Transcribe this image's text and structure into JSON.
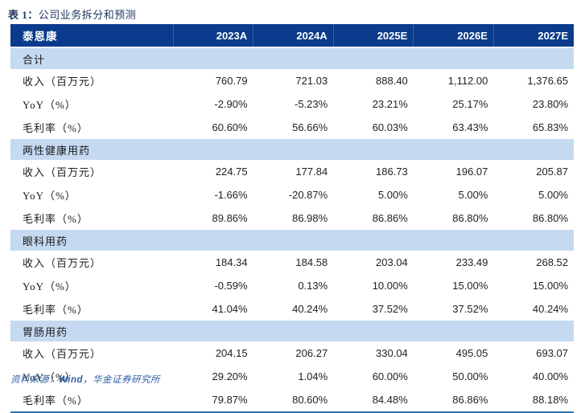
{
  "title": {
    "prefix": "表 1：",
    "text": "公司业务拆分和预测"
  },
  "colors": {
    "header_bg": "#0B3B8C",
    "header_divider": "#3B5EA8",
    "section_bg": "#C5D9F1",
    "title_color": "#1F3864",
    "table_bottom_border": "#2E74B5",
    "source_color": "#2E5FA8"
  },
  "table": {
    "company": "泰恩康",
    "years": [
      "2023A",
      "2024A",
      "2025E",
      "2026E",
      "2027E"
    ],
    "sections": [
      {
        "name": "合计",
        "rows": [
          {
            "label": "收入（百万元）",
            "values": [
              "760.79",
              "721.03",
              "888.40",
              "1,112.00",
              "1,376.65"
            ]
          },
          {
            "label": "YoY（%）",
            "values": [
              "-2.90%",
              "-5.23%",
              "23.21%",
              "25.17%",
              "23.80%"
            ]
          },
          {
            "label": "毛利率（%）",
            "values": [
              "60.60%",
              "56.66%",
              "60.03%",
              "63.43%",
              "65.83%"
            ]
          }
        ]
      },
      {
        "name": "两性健康用药",
        "rows": [
          {
            "label": "收入（百万元）",
            "values": [
              "224.75",
              "177.84",
              "186.73",
              "196.07",
              "205.87"
            ]
          },
          {
            "label": "YoY（%）",
            "values": [
              "-1.66%",
              "-20.87%",
              "5.00%",
              "5.00%",
              "5.00%"
            ]
          },
          {
            "label": "毛利率（%）",
            "values": [
              "89.86%",
              "86.98%",
              "86.86%",
              "86.80%",
              "86.80%"
            ]
          }
        ]
      },
      {
        "name": "眼科用药",
        "rows": [
          {
            "label": "收入（百万元）",
            "values": [
              "184.34",
              "184.58",
              "203.04",
              "233.49",
              "268.52"
            ]
          },
          {
            "label": "YoY（%）",
            "values": [
              "-0.59%",
              "0.13%",
              "10.00%",
              "15.00%",
              "15.00%"
            ]
          },
          {
            "label": "毛利率（%）",
            "values": [
              "41.04%",
              "40.24%",
              "37.52%",
              "37.52%",
              "40.24%"
            ]
          }
        ]
      },
      {
        "name": "胃肠用药",
        "rows": [
          {
            "label": "收入（百万元）",
            "values": [
              "204.15",
              "206.27",
              "330.04",
              "495.05",
              "693.07"
            ]
          },
          {
            "label": "YoY（%）",
            "values": [
              "29.20%",
              "1.04%",
              "60.00%",
              "50.00%",
              "40.00%"
            ]
          },
          {
            "label": "毛利率（%）",
            "values": [
              "79.87%",
              "80.60%",
              "84.48%",
              "86.86%",
              "88.18%"
            ]
          }
        ]
      }
    ]
  },
  "footer": {
    "source_prefix": "资料来源：",
    "source_wind": "Wind",
    "source_rest": "，华金证券研究所"
  }
}
